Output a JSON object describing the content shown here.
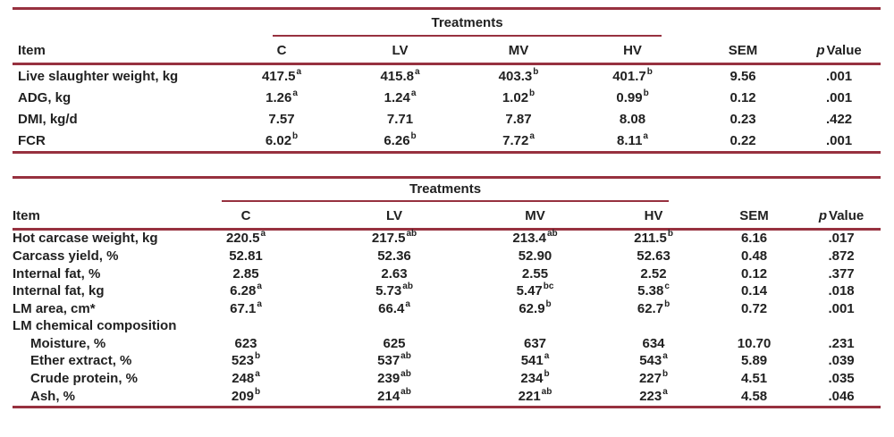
{
  "style": {
    "rule_color": "#97313f",
    "text_color": "#212121"
  },
  "tables": [
    {
      "id": "growth-performance-table",
      "span_label": "Treatments",
      "item_header": "Item",
      "treatment_headers": [
        "C",
        "LV",
        "MV",
        "HV"
      ],
      "sem_header": "SEM",
      "p_header": {
        "prefix": "p",
        "rest": "Value"
      },
      "rows": [
        {
          "item": "Live slaughter weight, kg",
          "cells": [
            [
              "417.5",
              "a"
            ],
            [
              "415.8",
              "a"
            ],
            [
              "403.3",
              "b"
            ],
            [
              "401.7",
              "b"
            ]
          ],
          "sem": "9.56",
          "p": ".001"
        },
        {
          "item": "ADG, kg",
          "cells": [
            [
              "1.26",
              "a"
            ],
            [
              "1.24",
              "a"
            ],
            [
              "1.02",
              "b"
            ],
            [
              "0.99",
              "b"
            ]
          ],
          "sem": "0.12",
          "p": ".001"
        },
        {
          "item": "DMI, kg/d",
          "cells": [
            [
              "7.57",
              ""
            ],
            [
              "7.71",
              ""
            ],
            [
              "7.87",
              ""
            ],
            [
              "8.08",
              ""
            ]
          ],
          "sem": "0.23",
          "p": ".422"
        },
        {
          "item": "FCR",
          "cells": [
            [
              "6.02",
              "b"
            ],
            [
              "6.26",
              "b"
            ],
            [
              "7.72",
              "a"
            ],
            [
              "8.11",
              "a"
            ]
          ],
          "sem": "0.22",
          "p": ".001"
        }
      ]
    },
    {
      "id": "carcass-characteristics-table",
      "span_label": "Treatments",
      "item_header": "Item",
      "treatment_headers": [
        "C",
        "LV",
        "MV",
        "HV"
      ],
      "sem_header": "SEM",
      "p_header": {
        "prefix": "p",
        "rest": "Value"
      },
      "rows": [
        {
          "item": "Hot carcase weight, kg",
          "cells": [
            [
              "220.5",
              "a"
            ],
            [
              "217.5",
              "ab"
            ],
            [
              "213.4",
              "ab"
            ],
            [
              "211.5",
              "b"
            ]
          ],
          "sem": "6.16",
          "p": ".017"
        },
        {
          "item": "Carcass yield, %",
          "cells": [
            [
              "52.81",
              ""
            ],
            [
              "52.36",
              ""
            ],
            [
              "52.90",
              ""
            ],
            [
              "52.63",
              ""
            ]
          ],
          "sem": "0.48",
          "p": ".872"
        },
        {
          "item": "Internal fat, %",
          "cells": [
            [
              "2.85",
              ""
            ],
            [
              "2.63",
              ""
            ],
            [
              "2.55",
              ""
            ],
            [
              "2.52",
              ""
            ]
          ],
          "sem": "0.12",
          "p": ".377"
        },
        {
          "item": "Internal fat, kg",
          "cells": [
            [
              "6.28",
              "a"
            ],
            [
              "5.73",
              "ab"
            ],
            [
              "5.47",
              "bc"
            ],
            [
              "5.38",
              "c"
            ]
          ],
          "sem": "0.14",
          "p": ".018"
        },
        {
          "item": "LM area, cm*",
          "cells": [
            [
              "67.1",
              "a"
            ],
            [
              "66.4",
              "a"
            ],
            [
              "62.9",
              "b"
            ],
            [
              "62.7",
              "b"
            ]
          ],
          "sem": "0.72",
          "p": ".001"
        },
        {
          "item": "LM chemical composition",
          "section": true,
          "cells": [],
          "sem": "",
          "p": ""
        },
        {
          "item": "Moisture, %",
          "indent": true,
          "cells": [
            [
              "623",
              ""
            ],
            [
              "625",
              ""
            ],
            [
              "637",
              ""
            ],
            [
              "634",
              ""
            ]
          ],
          "sem": "10.70",
          "p": ".231"
        },
        {
          "item": "Ether extract, %",
          "indent": true,
          "cells": [
            [
              "523",
              "b"
            ],
            [
              "537",
              "ab"
            ],
            [
              "541",
              "a"
            ],
            [
              "543",
              "a"
            ]
          ],
          "sem": "5.89",
          "p": ".039"
        },
        {
          "item": "Crude protein, %",
          "indent": true,
          "cells": [
            [
              "248",
              "a"
            ],
            [
              "239",
              "ab"
            ],
            [
              "234",
              "b"
            ],
            [
              "227",
              "b"
            ]
          ],
          "sem": "4.51",
          "p": ".035"
        },
        {
          "item": "Ash, %",
          "indent": true,
          "cells": [
            [
              "209",
              "b"
            ],
            [
              "214",
              "ab"
            ],
            [
              "221",
              "ab"
            ],
            [
              "223",
              "a"
            ]
          ],
          "sem": "4.58",
          "p": ".046"
        }
      ]
    }
  ]
}
